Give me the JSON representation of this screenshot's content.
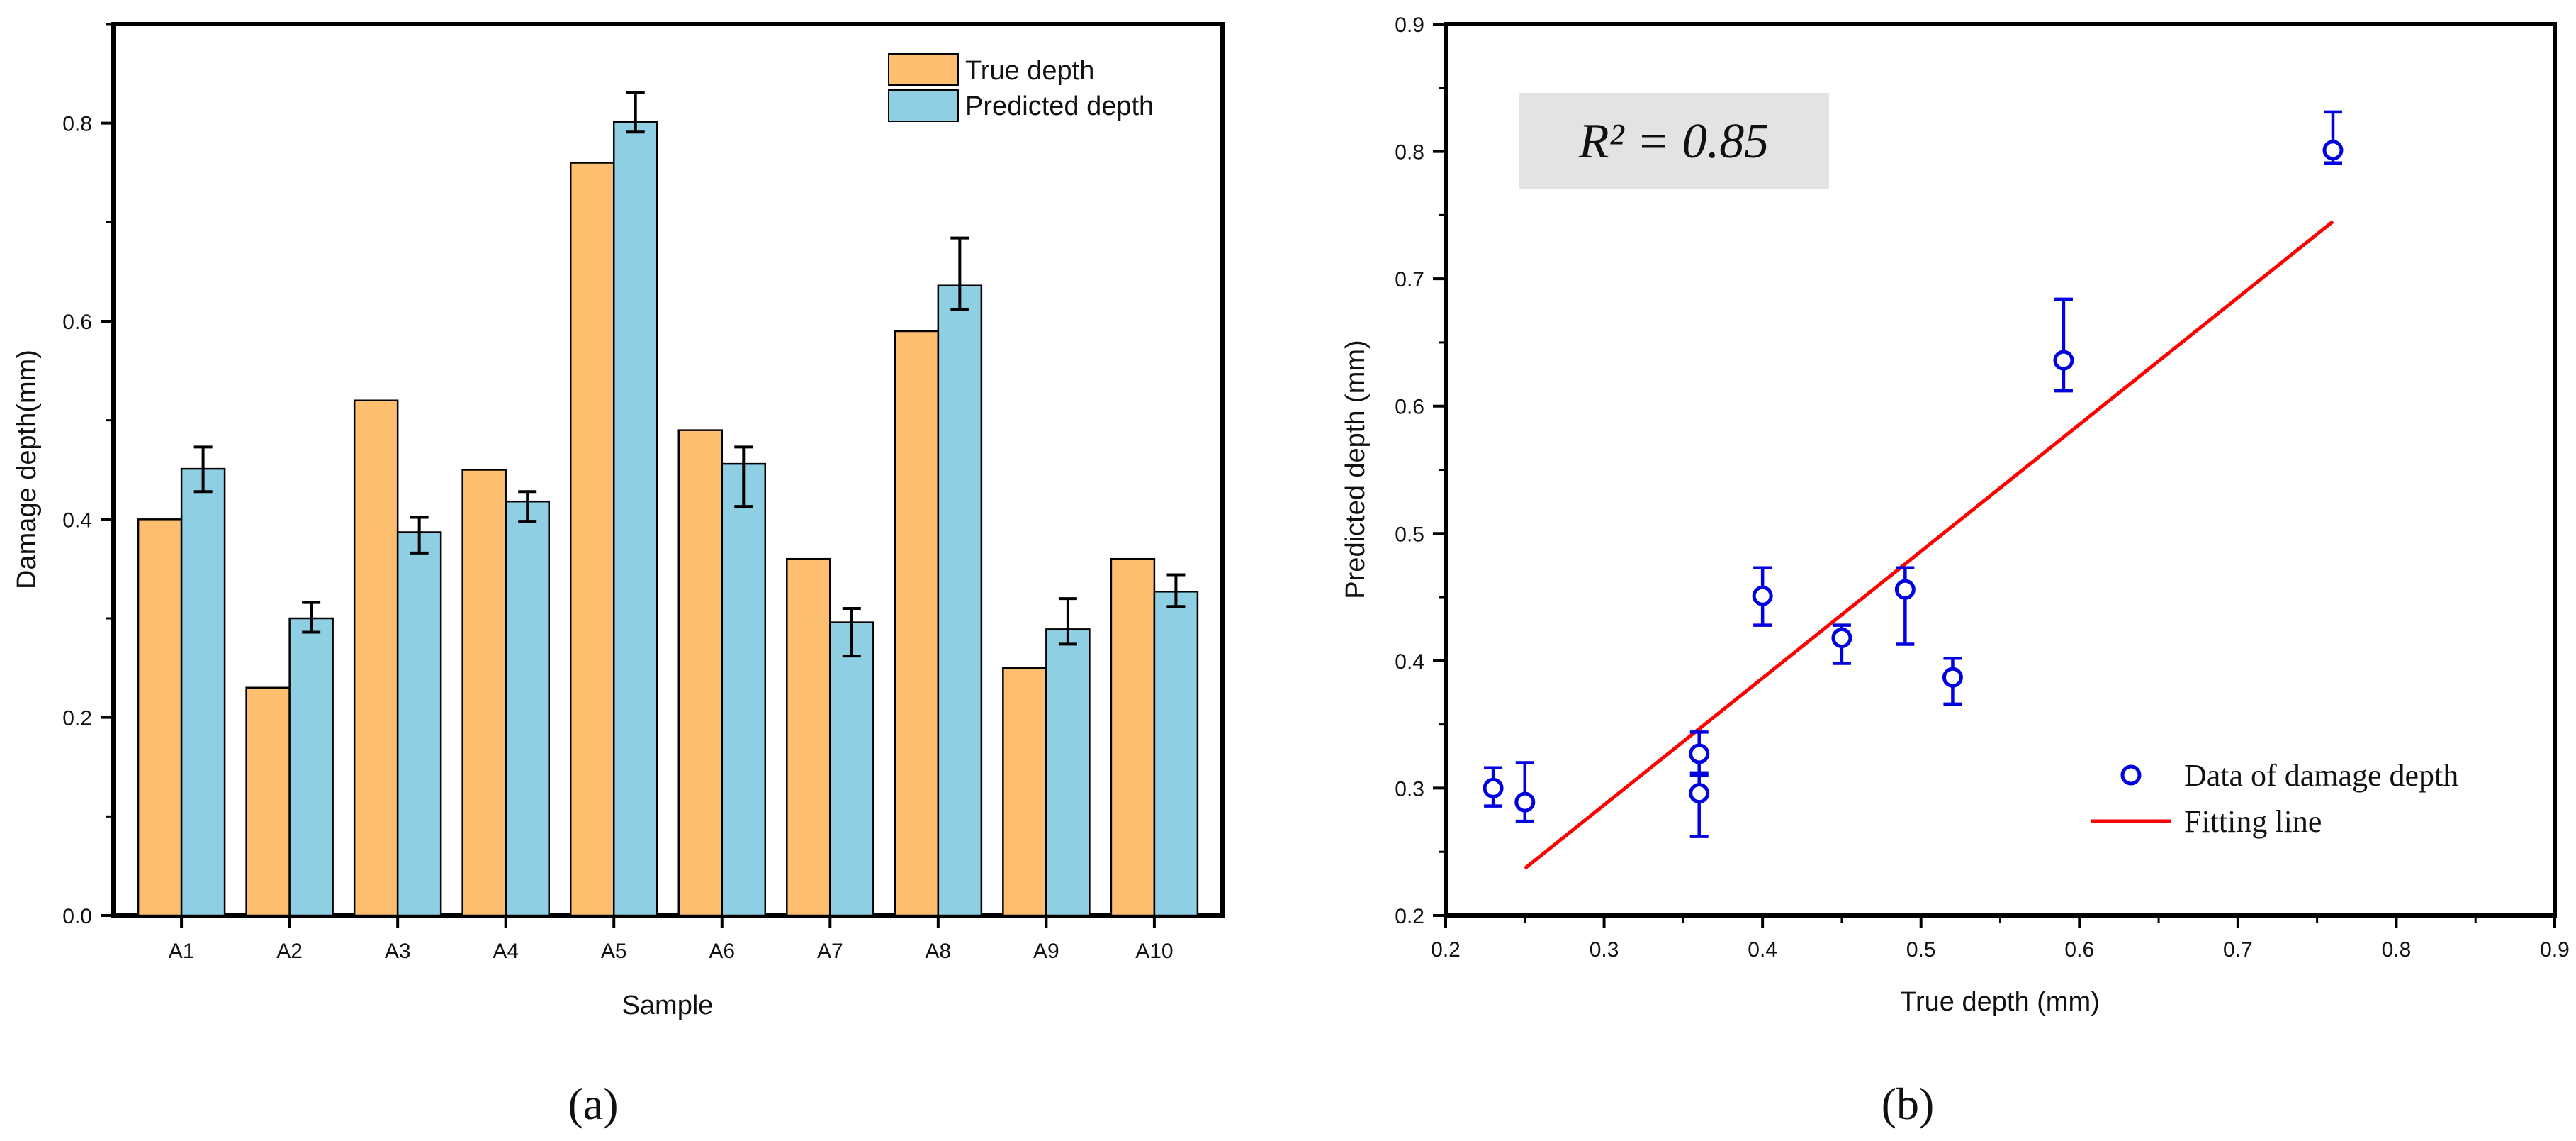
{
  "chart_data": [
    {
      "type": "bar",
      "panel_label": "(a)",
      "title": "",
      "xlabel": "Sample",
      "ylabel": "Damage depth(mm)",
      "categories": [
        "A1",
        "A2",
        "A3",
        "A4",
        "A5",
        "A6",
        "A7",
        "A8",
        "A9",
        "A10"
      ],
      "ylim": [
        0,
        0.9
      ],
      "yticks": [
        "0.0",
        "0.2",
        "0.4",
        "0.6",
        "0.8"
      ],
      "series": [
        {
          "name": "True depth",
          "color": "#FDBF6F",
          "values": [
            0.4,
            0.23,
            0.52,
            0.45,
            0.76,
            0.49,
            0.36,
            0.59,
            0.25,
            0.36
          ]
        },
        {
          "name": "Predicted depth",
          "color": "#8ECFE4",
          "values": [
            0.451,
            0.3,
            0.387,
            0.418,
            0.801,
            0.456,
            0.296,
            0.636,
            0.289,
            0.327
          ],
          "error_low": [
            0.428,
            0.286,
            0.366,
            0.398,
            0.791,
            0.413,
            0.262,
            0.612,
            0.274,
            0.312
          ],
          "error_high": [
            0.473,
            0.316,
            0.402,
            0.428,
            0.831,
            0.473,
            0.31,
            0.684,
            0.32,
            0.344
          ]
        }
      ],
      "legend_position": "top-right"
    },
    {
      "type": "scatter",
      "panel_label": "(b)",
      "title": "",
      "xlabel": "True depth (mm)",
      "ylabel": "Predicted depth (mm)",
      "xlim": [
        0.2,
        0.9
      ],
      "ylim": [
        0.2,
        0.9
      ],
      "xticks": [
        "0.2",
        "0.3",
        "0.4",
        "0.5",
        "0.6",
        "0.7",
        "0.8",
        "0.9"
      ],
      "yticks": [
        "0.2",
        "0.3",
        "0.4",
        "0.5",
        "0.6",
        "0.7",
        "0.8",
        "0.9"
      ],
      "annotation": "R² = 0.85",
      "series": [
        {
          "name": "Data of damage depth",
          "color": "#0000E0",
          "marker": "open-circle",
          "x": [
            0.23,
            0.25,
            0.36,
            0.36,
            0.4,
            0.45,
            0.49,
            0.52,
            0.59,
            0.76
          ],
          "y": [
            0.3,
            0.289,
            0.327,
            0.296,
            0.451,
            0.418,
            0.456,
            0.387,
            0.636,
            0.801
          ],
          "error_low": [
            0.286,
            0.274,
            0.312,
            0.262,
            0.428,
            0.398,
            0.413,
            0.366,
            0.612,
            0.791
          ],
          "error_high": [
            0.316,
            0.32,
            0.344,
            0.31,
            0.473,
            0.428,
            0.473,
            0.402,
            0.684,
            0.831
          ]
        },
        {
          "name": "Fitting line",
          "type": "line",
          "color": "#FF0000",
          "x": [
            0.25,
            0.76
          ],
          "y": [
            0.237,
            0.745
          ]
        }
      ],
      "legend_position": "bottom-right"
    }
  ]
}
